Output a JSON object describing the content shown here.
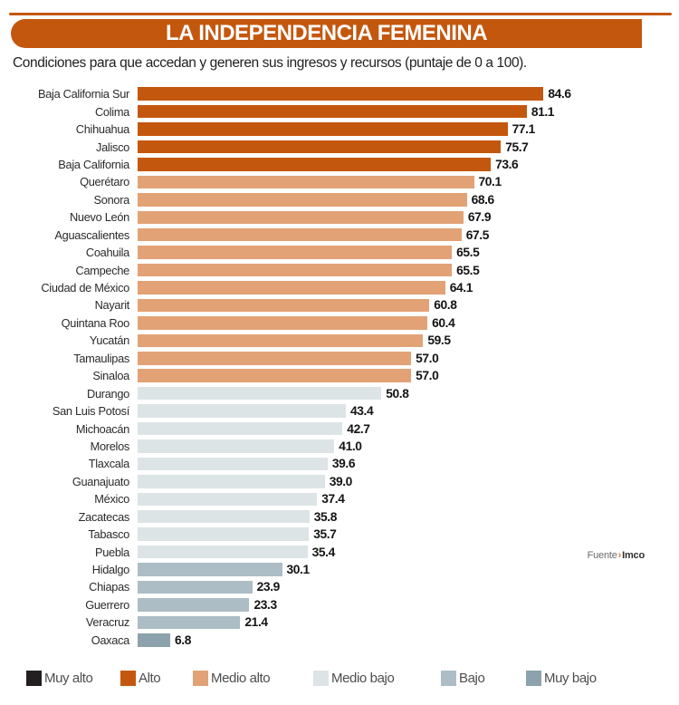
{
  "header": {
    "title": "LA INDEPENDENCIA FEMENINA",
    "subtitle": "Condiciones para que accedan y generen sus ingresos y recursos (puntaje de 0 a 100)."
  },
  "source": {
    "prefix": "Fuente",
    "separator": "›",
    "name": "Imco"
  },
  "colors": {
    "banner_orange": "#c4570e",
    "muy_alto": "#231f20",
    "alto": "#c4570e",
    "medio_alto": "#e2a276",
    "medio_bajo": "#dde4e6",
    "bajo": "#acbdc5",
    "muy_bajo": "#8ca2ac"
  },
  "chart_data": {
    "type": "bar",
    "orientation": "horizontal",
    "title": "LA INDEPENDENCIA FEMENINA",
    "subtitle": "Condiciones para que accedan y generen sus ingresos y recursos (puntaje de 0 a 100).",
    "xlim": [
      0,
      100
    ],
    "grid": false,
    "legend_position": "bottom",
    "categories": [
      "Baja California Sur",
      "Colima",
      "Chihuahua",
      "Jalisco",
      "Baja California",
      "Querétaro",
      "Sonora",
      "Nuevo León",
      "Aguascalientes",
      "Coahuila",
      "Campeche",
      "Ciudad de México",
      "Nayarit",
      "Quintana Roo",
      "Yucatán",
      "Tamaulipas",
      "Sinaloa",
      "Durango",
      "San Luis Potosí",
      "Michoacán",
      "Morelos",
      "Tlaxcala",
      "Guanajuato",
      "México",
      "Zacatecas",
      "Tabasco",
      "Puebla",
      "Hidalgo",
      "Chiapas",
      "Guerrero",
      "Veracruz",
      "Oaxaca"
    ],
    "values": [
      84.6,
      81.1,
      77.1,
      75.7,
      73.6,
      70.1,
      68.6,
      67.9,
      67.5,
      65.5,
      65.5,
      64.1,
      60.8,
      60.4,
      59.5,
      57.0,
      57.0,
      50.8,
      43.4,
      42.7,
      41.0,
      39.6,
      39.0,
      37.4,
      35.8,
      35.7,
      35.4,
      30.1,
      23.9,
      23.3,
      21.4,
      6.8
    ],
    "levels": [
      "alto",
      "alto",
      "alto",
      "alto",
      "alto",
      "medio_alto",
      "medio_alto",
      "medio_alto",
      "medio_alto",
      "medio_alto",
      "medio_alto",
      "medio_alto",
      "medio_alto",
      "medio_alto",
      "medio_alto",
      "medio_alto",
      "medio_alto",
      "medio_bajo",
      "medio_bajo",
      "medio_bajo",
      "medio_bajo",
      "medio_bajo",
      "medio_bajo",
      "medio_bajo",
      "medio_bajo",
      "medio_bajo",
      "medio_bajo",
      "bajo",
      "bajo",
      "bajo",
      "bajo",
      "muy_bajo"
    ],
    "legend": [
      {
        "key": "muy_alto",
        "label": "Muy alto",
        "color": "#231f20"
      },
      {
        "key": "alto",
        "label": "Alto",
        "color": "#c4570e"
      },
      {
        "key": "medio_alto",
        "label": "Medio alto",
        "color": "#e2a276"
      },
      {
        "key": "medio_bajo",
        "label": "Medio bajo",
        "color": "#dde4e6"
      },
      {
        "key": "bajo",
        "label": "Bajo",
        "color": "#acbdc5"
      },
      {
        "key": "muy_bajo",
        "label": "Muy bajo",
        "color": "#8ca2ac"
      }
    ]
  }
}
